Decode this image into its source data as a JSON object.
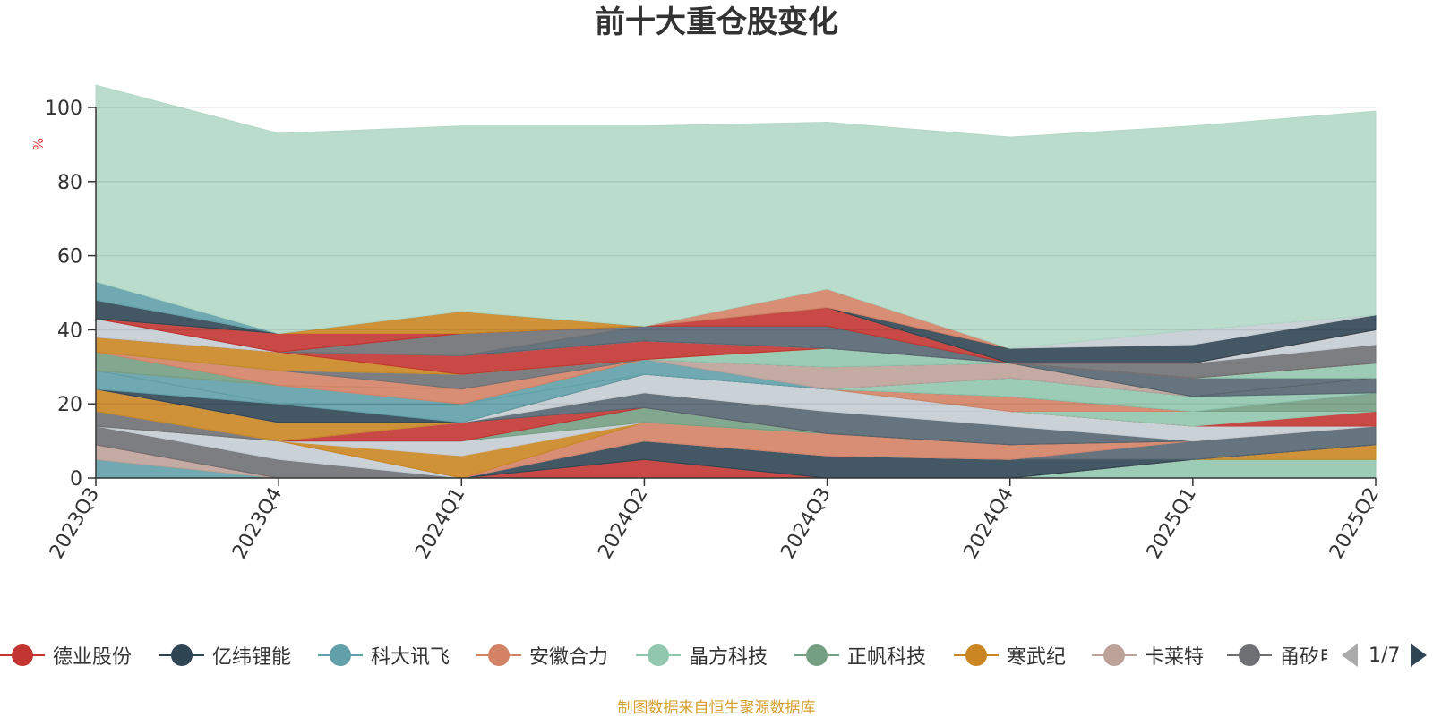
{
  "title": "前十大重仓股变化",
  "source_note": "制图数据来自恒生聚源数据库",
  "pager": {
    "text": "1/7"
  },
  "chart_data": {
    "type": "area",
    "stacked": true,
    "ylabel": "%",
    "ylim": [
      0,
      100
    ],
    "yticks": [
      "0",
      "20",
      "40",
      "60",
      "80",
      "100"
    ],
    "grid": true,
    "categories": [
      "2023Q3",
      "2023Q4",
      "2024Q1",
      "2024Q2",
      "2024Q3",
      "2024Q4",
      "2025Q1",
      "2025Q2"
    ],
    "legend": {
      "position": "bottom",
      "items": [
        {
          "name": "德业股份",
          "color": "#c23531"
        },
        {
          "name": "亿纬锂能",
          "color": "#2f4554"
        },
        {
          "name": "科大讯飞",
          "color": "#61a0a8"
        },
        {
          "name": "安徽合力",
          "color": "#d48265"
        },
        {
          "name": "晶方科技",
          "color": "#91c7ae"
        },
        {
          "name": "正帆科技",
          "color": "#749f83"
        },
        {
          "name": "寒武纪",
          "color": "#ca8622"
        },
        {
          "name": "卡莱特",
          "color": "#bda29a"
        },
        {
          "name": "甬矽电子",
          "color": "#6e7074"
        }
      ]
    },
    "series": [
      {
        "color": "#91c7ae",
        "values": [
          0,
          0,
          0,
          0,
          0,
          0,
          5,
          5
        ]
      },
      {
        "color": "#61a0a8",
        "values": [
          5,
          0,
          0,
          0,
          0,
          0,
          0,
          0
        ]
      },
      {
        "color": "#ca8622",
        "values": [
          0,
          0,
          0,
          0,
          0,
          0,
          0,
          4
        ]
      },
      {
        "color": "#bda29a",
        "values": [
          4,
          0,
          0,
          0,
          0,
          0,
          0,
          0
        ]
      },
      {
        "color": "#c23531",
        "values": [
          0,
          0,
          0,
          5,
          0,
          0,
          0,
          0
        ]
      },
      {
        "color": "#6e7074",
        "values": [
          5,
          5,
          0,
          0,
          0,
          0,
          0,
          0
        ]
      },
      {
        "color": "#2f4554",
        "values": [
          0,
          0,
          0,
          5,
          6,
          5,
          0,
          0
        ]
      },
      {
        "color": "#546570",
        "values": [
          0,
          0,
          0,
          0,
          0,
          0,
          5,
          5
        ]
      },
      {
        "color": "#c4ccd3",
        "values": [
          0,
          5,
          0,
          0,
          0,
          0,
          0,
          0
        ]
      },
      {
        "color": "#d48265",
        "values": [
          0,
          0,
          0,
          5,
          6,
          4,
          0,
          0
        ]
      },
      {
        "color": "#ca8622",
        "values": [
          0,
          0,
          6,
          0,
          0,
          0,
          0,
          0
        ]
      },
      {
        "color": "#c4ccd3",
        "values": [
          0,
          0,
          4,
          0,
          0,
          0,
          0,
          0
        ]
      },
      {
        "color": "#749f83",
        "values": [
          0,
          0,
          0,
          4,
          0,
          0,
          0,
          0
        ]
      },
      {
        "color": "#6e7074",
        "values": [
          4,
          0,
          0,
          0,
          0,
          0,
          0,
          0
        ]
      },
      {
        "color": "#c23531",
        "values": [
          0,
          0,
          5,
          0,
          0,
          0,
          0,
          0
        ]
      },
      {
        "color": "#546570",
        "values": [
          0,
          0,
          0,
          4,
          6,
          5,
          0,
          0
        ]
      },
      {
        "color": "#c4ccd3",
        "values": [
          0,
          0,
          0,
          0,
          0,
          4,
          4,
          0
        ]
      },
      {
        "color": "#ca8622",
        "values": [
          6,
          5,
          0,
          0,
          0,
          0,
          0,
          0
        ]
      },
      {
        "color": "#c23531",
        "values": [
          0,
          0,
          0,
          0,
          0,
          0,
          0,
          4
        ]
      },
      {
        "color": "#91c7ae",
        "values": [
          0,
          0,
          0,
          0,
          0,
          0,
          4,
          0
        ]
      },
      {
        "color": "#c4ccd3",
        "values": [
          0,
          0,
          0,
          5,
          6,
          0,
          0,
          0
        ]
      },
      {
        "color": "#749f83",
        "values": [
          0,
          0,
          0,
          0,
          0,
          0,
          0,
          5
        ]
      },
      {
        "color": "#d48265",
        "values": [
          0,
          0,
          0,
          0,
          0,
          4,
          0,
          0
        ]
      },
      {
        "color": "#2f4554",
        "values": [
          0,
          5,
          0,
          0,
          0,
          0,
          0,
          0
        ]
      },
      {
        "color": "#61a0a8",
        "values": [
          0,
          0,
          5,
          0,
          0,
          0,
          0,
          0
        ]
      },
      {
        "color": "#61a0a8",
        "values": [
          5,
          0,
          0,
          4,
          0,
          0,
          0,
          0
        ]
      },
      {
        "color": "#91c7ae",
        "values": [
          0,
          0,
          0,
          0,
          0,
          5,
          4,
          0
        ]
      },
      {
        "color": "#546570",
        "values": [
          0,
          0,
          0,
          0,
          0,
          0,
          0,
          4
        ]
      },
      {
        "color": "#61a0a8",
        "values": [
          0,
          5,
          0,
          0,
          0,
          0,
          0,
          0
        ]
      },
      {
        "color": "#bda29a",
        "values": [
          0,
          0,
          0,
          0,
          6,
          4,
          0,
          0
        ]
      },
      {
        "color": "#d48265",
        "values": [
          0,
          0,
          4,
          0,
          0,
          0,
          0,
          0
        ]
      },
      {
        "color": "#749f83",
        "values": [
          5,
          0,
          0,
          0,
          0,
          0,
          0,
          0
        ]
      },
      {
        "color": "#d48265",
        "values": [
          0,
          4,
          0,
          0,
          0,
          0,
          0,
          0
        ]
      },
      {
        "color": "#6e7074",
        "values": [
          0,
          0,
          4,
          0,
          0,
          0,
          0,
          0
        ]
      },
      {
        "color": "#546570",
        "values": [
          0,
          0,
          0,
          0,
          0,
          0,
          5,
          0
        ]
      },
      {
        "color": "#91c7ae",
        "values": [
          0,
          0,
          0,
          0,
          0,
          0,
          0,
          4
        ]
      },
      {
        "color": "#91c7ae",
        "values": [
          0,
          0,
          0,
          0,
          5,
          0,
          0,
          0
        ]
      },
      {
        "color": "#ca8622",
        "values": [
          4,
          5,
          0,
          0,
          0,
          0,
          0,
          0
        ]
      },
      {
        "color": "#c23531",
        "values": [
          0,
          0,
          5,
          5,
          0,
          0,
          0,
          0
        ]
      },
      {
        "color": "#6e7074",
        "values": [
          0,
          0,
          0,
          0,
          0,
          0,
          4,
          5
        ]
      },
      {
        "color": "#c4ccd3",
        "values": [
          5,
          0,
          0,
          0,
          0,
          0,
          0,
          4
        ]
      },
      {
        "color": "#546570",
        "values": [
          0,
          0,
          0,
          4,
          6,
          0,
          0,
          0
        ]
      },
      {
        "color": "#6e7074",
        "values": [
          0,
          0,
          6,
          0,
          0,
          0,
          0,
          0
        ]
      },
      {
        "color": "#c23531",
        "values": [
          0,
          0,
          0,
          0,
          5,
          0,
          0,
          0
        ]
      },
      {
        "color": "#c23531",
        "values": [
          0,
          5,
          0,
          0,
          0,
          0,
          0,
          0
        ]
      },
      {
        "color": "#ca8622",
        "values": [
          0,
          0,
          6,
          0,
          0,
          0,
          0,
          0
        ]
      },
      {
        "color": "#2f4554",
        "values": [
          0,
          0,
          0,
          0,
          0,
          4,
          5,
          4
        ]
      },
      {
        "color": "#d48265",
        "values": [
          0,
          0,
          0,
          0,
          5,
          0,
          0,
          0
        ]
      },
      {
        "color": "#2f4554",
        "values": [
          5,
          0,
          0,
          0,
          0,
          0,
          0,
          0
        ]
      },
      {
        "color": "#c4ccd3",
        "values": [
          0,
          0,
          0,
          0,
          0,
          0,
          4,
          0
        ]
      },
      {
        "color": "#61a0a8",
        "values": [
          5,
          0,
          0,
          0,
          0,
          0,
          0,
          0
        ]
      },
      {
        "color": "#91c7ae",
        "values": [
          0,
          0,
          0,
          0,
          0,
          0,
          0,
          0
        ]
      },
      {
        "color": "#b3d8c6",
        "values": [
          53,
          54,
          50,
          54,
          45,
          57,
          55,
          55
        ]
      }
    ]
  }
}
